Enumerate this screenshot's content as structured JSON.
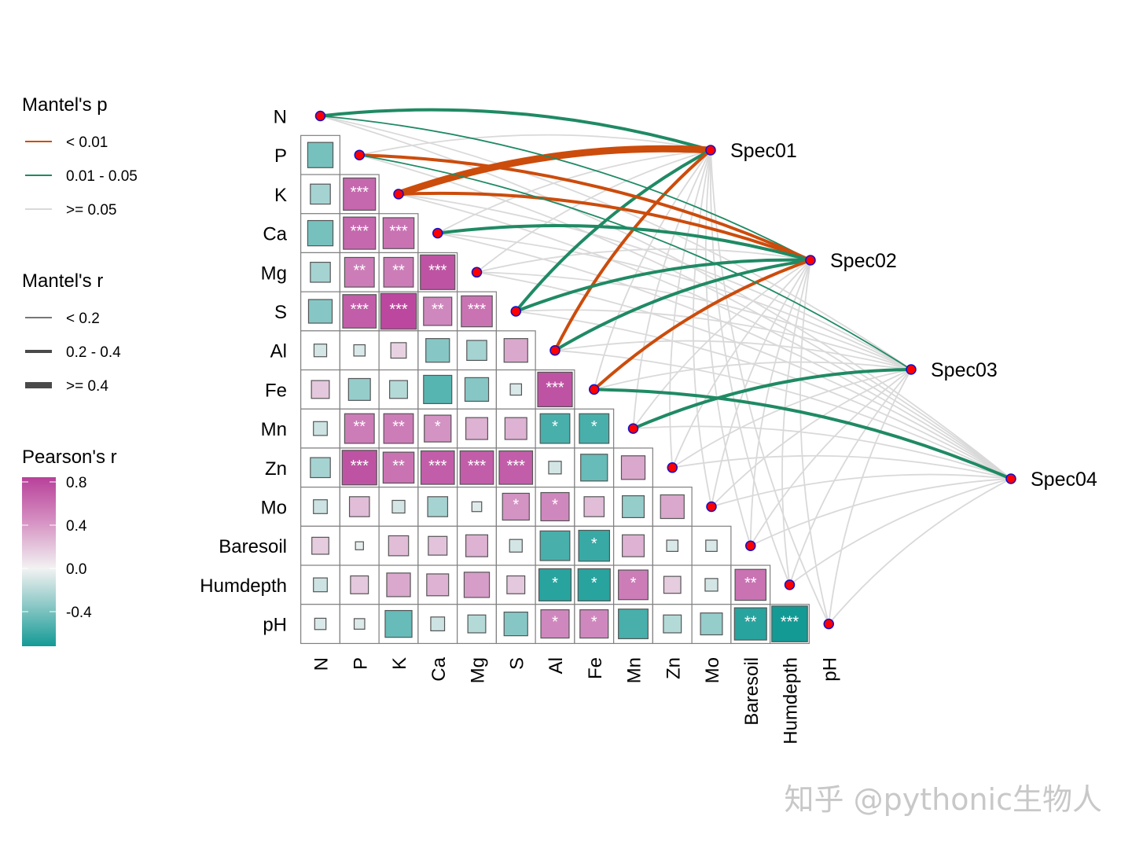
{
  "chart_data": {
    "type": "heatmap",
    "variables": [
      "N",
      "P",
      "K",
      "Ca",
      "Mg",
      "S",
      "Al",
      "Fe",
      "Mn",
      "Zn",
      "Mo",
      "Baresoil",
      "Humdepth",
      "pH"
    ],
    "pearson_r": [
      [],
      [
        -0.4
      ],
      [
        -0.25,
        0.65
      ],
      [
        -0.4,
        0.65,
        0.6
      ],
      [
        -0.25,
        0.55,
        0.55,
        0.75
      ],
      [
        -0.35,
        0.7,
        0.8,
        0.5,
        0.6
      ],
      [
        -0.1,
        -0.08,
        0.15,
        -0.35,
        -0.25,
        0.35
      ],
      [
        0.2,
        -0.3,
        -0.2,
        -0.5,
        -0.35,
        -0.08,
        0.75
      ],
      [
        -0.12,
        0.55,
        0.55,
        0.45,
        0.3,
        0.3,
        -0.55,
        -0.55
      ],
      [
        -0.25,
        0.75,
        0.6,
        0.7,
        0.7,
        0.7,
        -0.1,
        -0.45,
        0.35
      ],
      [
        -0.12,
        0.25,
        -0.1,
        -0.25,
        -0.06,
        0.45,
        0.5,
        0.25,
        -0.3,
        0.35
      ],
      [
        0.18,
        -0.04,
        0.25,
        0.22,
        0.3,
        -0.1,
        -0.55,
        -0.6,
        0.3,
        -0.08,
        -0.08
      ],
      [
        -0.12,
        0.2,
        0.35,
        0.3,
        0.4,
        0.2,
        -0.65,
        -0.65,
        0.55,
        0.18,
        -0.1,
        0.6
      ],
      [
        -0.08,
        -0.07,
        -0.45,
        -0.12,
        -0.2,
        -0.35,
        0.5,
        0.5,
        -0.55,
        -0.2,
        -0.3,
        -0.65,
        -0.8
      ]
    ],
    "significance": [
      [],
      [
        ""
      ],
      [
        "",
        "***"
      ],
      [
        "",
        "***",
        "***"
      ],
      [
        "",
        "**",
        "**",
        "***"
      ],
      [
        "",
        "***",
        "***",
        "**",
        "***"
      ],
      [
        "",
        "",
        "",
        "",
        "",
        ""
      ],
      [
        "",
        "",
        "",
        "",
        "",
        "",
        "***"
      ],
      [
        "",
        "**",
        "**",
        "*",
        "",
        "",
        "*",
        "*"
      ],
      [
        "",
        "***",
        "**",
        "***",
        "***",
        "***",
        "",
        "",
        ""
      ],
      [
        "",
        "",
        "",
        "",
        "",
        "*",
        "*",
        "",
        "",
        ""
      ],
      [
        "",
        "",
        "",
        "",
        "",
        "",
        "",
        "*",
        "",
        "",
        ""
      ],
      [
        "",
        "",
        "",
        "",
        "",
        "",
        "*",
        "*",
        "*",
        "",
        "",
        "**"
      ],
      [
        "",
        "",
        "",
        "",
        "",
        "",
        "*",
        "*",
        "",
        "",
        "",
        "**",
        "***"
      ]
    ],
    "color_scale": {
      "limits": [
        -0.72,
        0.84
      ],
      "low": "#139A95",
      "mid": "#F2F2F2",
      "high": "#B8409A"
    },
    "species": [
      "Spec01",
      "Spec02",
      "Spec03",
      "Spec04"
    ],
    "mantel": {
      "Spec01": {
        "p": [
          "0.01 - 0.05",
          ">= 0.05",
          "< 0.01",
          ">= 0.05",
          ">= 0.05",
          "0.01 - 0.05",
          "< 0.01",
          ">= 0.05",
          ">= 0.05",
          ">= 0.05",
          ">= 0.05",
          ">= 0.05",
          ">= 0.05",
          ">= 0.05"
        ],
        "r": [
          "0.2 - 0.4",
          "< 0.2",
          ">= 0.4",
          "< 0.2",
          "< 0.2",
          "0.2 - 0.4",
          "0.2 - 0.4",
          "< 0.2",
          "< 0.2",
          "< 0.2",
          "< 0.2",
          "< 0.2",
          "< 0.2",
          "< 0.2"
        ]
      },
      "Spec02": {
        "p": [
          "0.01 - 0.05",
          "< 0.01",
          "< 0.01",
          "0.01 - 0.05",
          ">= 0.05",
          "0.01 - 0.05",
          "0.01 - 0.05",
          "< 0.01",
          ">= 0.05",
          ">= 0.05",
          ">= 0.05",
          ">= 0.05",
          ">= 0.05",
          ">= 0.05"
        ],
        "r": [
          "< 0.2",
          "0.2 - 0.4",
          "0.2 - 0.4",
          "0.2 - 0.4",
          "< 0.2",
          "0.2 - 0.4",
          "0.2 - 0.4",
          "0.2 - 0.4",
          "< 0.2",
          "< 0.2",
          "< 0.2",
          "< 0.2",
          "< 0.2",
          "< 0.2"
        ]
      },
      "Spec03": {
        "p": [
          ">= 0.05",
          "0.01 - 0.05",
          ">= 0.05",
          ">= 0.05",
          ">= 0.05",
          ">= 0.05",
          ">= 0.05",
          ">= 0.05",
          "0.01 - 0.05",
          ">= 0.05",
          ">= 0.05",
          ">= 0.05",
          ">= 0.05",
          ">= 0.05"
        ],
        "r": [
          "< 0.2",
          "< 0.2",
          "< 0.2",
          "< 0.2",
          "< 0.2",
          "< 0.2",
          "< 0.2",
          "< 0.2",
          "0.2 - 0.4",
          "< 0.2",
          "< 0.2",
          "< 0.2",
          "< 0.2",
          "< 0.2"
        ]
      },
      "Spec04": {
        "p": [
          ">= 0.05",
          ">= 0.05",
          ">= 0.05",
          ">= 0.05",
          ">= 0.05",
          ">= 0.05",
          ">= 0.05",
          "0.01 - 0.05",
          ">= 0.05",
          ">= 0.05",
          ">= 0.05",
          ">= 0.05",
          ">= 0.05",
          ">= 0.05"
        ],
        "r": [
          "< 0.2",
          "< 0.2",
          "< 0.2",
          "< 0.2",
          "< 0.2",
          "< 0.2",
          "< 0.2",
          "0.2 - 0.4",
          "< 0.2",
          "< 0.2",
          "< 0.2",
          "< 0.2",
          "< 0.2",
          "< 0.2"
        ]
      }
    },
    "mantel_p_colors": {
      "< 0.01": "#CC4C0C",
      "0.01 - 0.05": "#1F8A64",
      ">= 0.05": "#D9D9D9"
    },
    "node_fill": "#FF0000",
    "node_stroke": "#1010CC"
  },
  "legend": {
    "mantel_p": {
      "title": "Mantel's p",
      "items": [
        "< 0.01",
        "0.01 - 0.05",
        ">= 0.05"
      ]
    },
    "mantel_r": {
      "title": "Mantel's r",
      "items": [
        "< 0.2",
        "0.2 - 0.4",
        ">= 0.4"
      ]
    },
    "pearson": {
      "title": "Pearson's r",
      "ticks": [
        "0.8",
        "0.4",
        "0.0",
        "-0.4"
      ]
    }
  },
  "watermark": "知乎 @pythonic生物人"
}
